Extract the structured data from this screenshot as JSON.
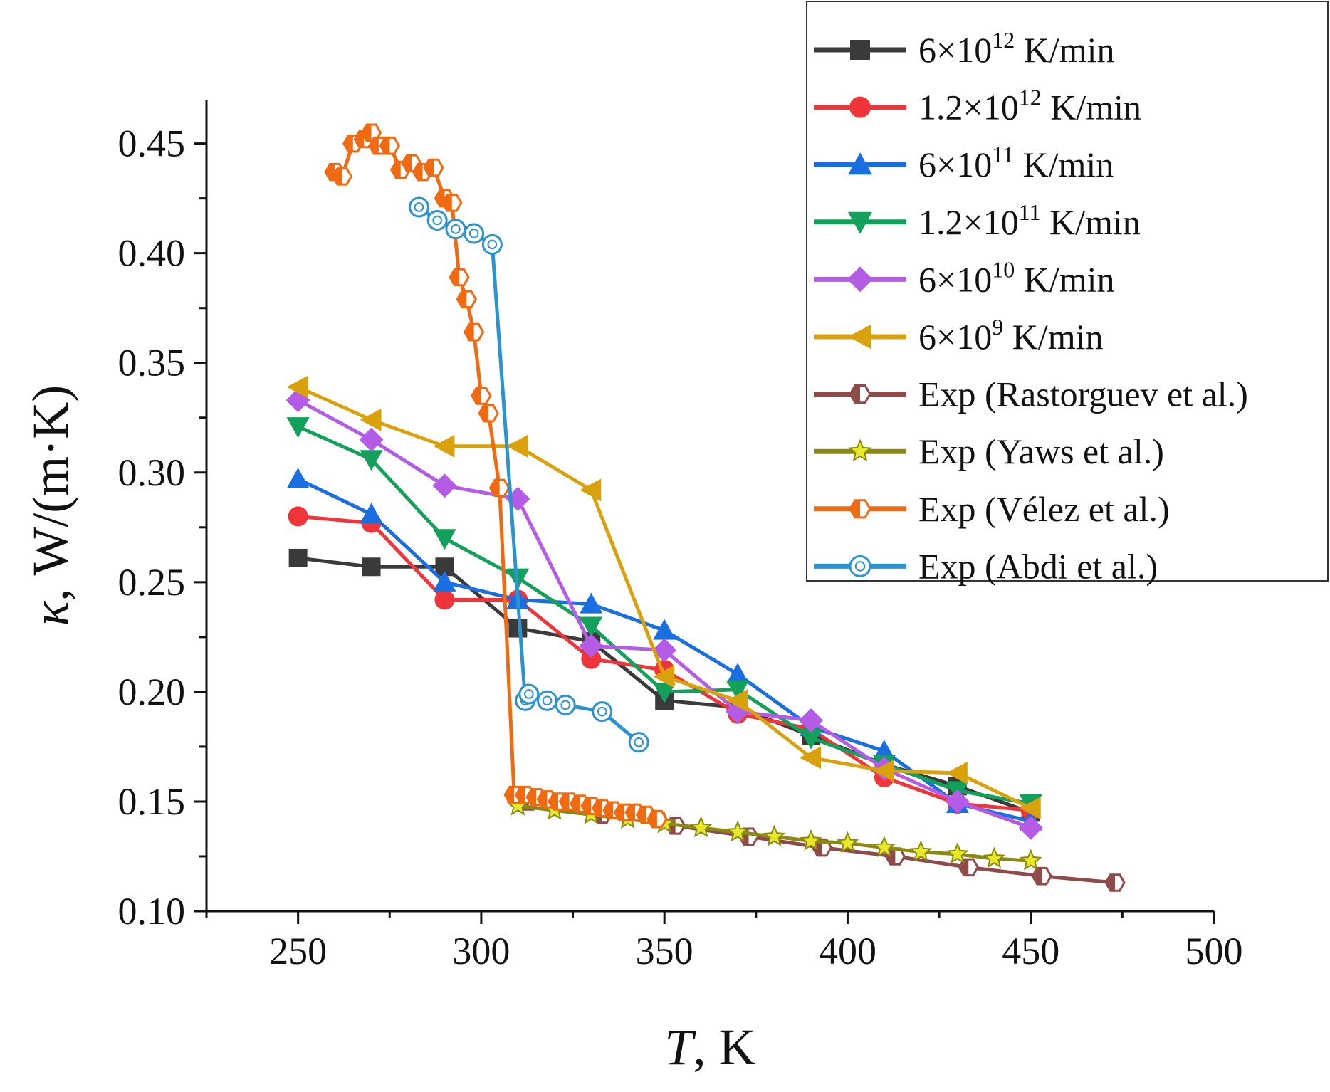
{
  "chart_data": {
    "type": "line",
    "xlabel": {
      "main": "T",
      "unit": ", K"
    },
    "ylabel": {
      "main": "κ",
      "unit": ", W/(m·K)"
    },
    "xlim": [
      225,
      500
    ],
    "ylim": [
      0.1,
      0.47
    ],
    "xticks": [
      250,
      300,
      350,
      400,
      450,
      500
    ],
    "yticks": [
      0.1,
      0.15,
      0.2,
      0.25,
      0.3,
      0.35,
      0.4,
      0.45
    ],
    "ytick_labels": [
      "0.10",
      "0.15",
      "0.20",
      "0.25",
      "0.30",
      "0.35",
      "0.40",
      "0.45"
    ],
    "grid": false,
    "legend_position": "top-right",
    "series": [
      {
        "name": "6×10^12 K/min",
        "label_base": "6×10",
        "label_exp": "12",
        "label_unit": " K/min",
        "color": "#3a3a3a",
        "marker": "square",
        "x": [
          250,
          270,
          290,
          310,
          330,
          350,
          370,
          390,
          410,
          430,
          450
        ],
        "y": [
          0.261,
          0.257,
          0.257,
          0.229,
          0.223,
          0.196,
          0.193,
          0.18,
          0.167,
          0.157,
          0.145
        ]
      },
      {
        "name": "1.2×10^12 K/min",
        "label_base": "1.2×10",
        "label_exp": "12",
        "label_unit": " K/min",
        "color": "#f0353a",
        "marker": "circle",
        "x": [
          250,
          270,
          290,
          310,
          330,
          350,
          370,
          390,
          410,
          430,
          450
        ],
        "y": [
          0.28,
          0.277,
          0.242,
          0.242,
          0.215,
          0.21,
          0.19,
          0.183,
          0.161,
          0.149,
          0.146
        ]
      },
      {
        "name": "6×10^11 K/min",
        "label_base": "6×10",
        "label_exp": "11",
        "label_unit": " K/min",
        "color": "#1a6fe0",
        "marker": "triangle-up",
        "x": [
          250,
          270,
          290,
          310,
          330,
          350,
          370,
          390,
          410,
          430,
          450
        ],
        "y": [
          0.297,
          0.281,
          0.25,
          0.242,
          0.24,
          0.228,
          0.208,
          0.184,
          0.173,
          0.149,
          0.141
        ]
      },
      {
        "name": "1.2×10^11 K/min",
        "label_base": "1.2×10",
        "label_exp": "11",
        "label_unit": " K/min",
        "color": "#12a05a",
        "marker": "triangle-down",
        "x": [
          250,
          270,
          290,
          310,
          330,
          350,
          370,
          390,
          410,
          430,
          450
        ],
        "y": [
          0.321,
          0.306,
          0.27,
          0.252,
          0.23,
          0.2,
          0.201,
          0.179,
          0.167,
          0.155,
          0.149
        ]
      },
      {
        "name": "6×10^10 K/min",
        "label_base": "6×10",
        "label_exp": "10",
        "label_unit": " K/min",
        "color": "#b45ce6",
        "marker": "diamond",
        "x": [
          250,
          270,
          290,
          310,
          330,
          350,
          370,
          390,
          410,
          430,
          450
        ],
        "y": [
          0.333,
          0.315,
          0.294,
          0.288,
          0.221,
          0.219,
          0.191,
          0.187,
          0.165,
          0.15,
          0.138
        ]
      },
      {
        "name": "6×10^9 K/min",
        "label_base": "6×10",
        "label_exp": "9",
        "label_unit": " K/min",
        "color": "#d9a20d",
        "marker": "triangle-left",
        "x": [
          250,
          270,
          290,
          310,
          330,
          350,
          370,
          390,
          410,
          430,
          450
        ],
        "y": [
          0.339,
          0.324,
          0.312,
          0.312,
          0.292,
          0.207,
          0.196,
          0.17,
          0.164,
          0.163,
          0.147
        ]
      },
      {
        "name": "Exp (Rastorguev et al.)",
        "label_base": "Exp (Rastorguev et al.)",
        "label_exp": "",
        "label_unit": "",
        "color": "#8f4a4a",
        "marker": "half-hexagon",
        "x": [
          313,
          333,
          353,
          373,
          393,
          413,
          433,
          453,
          473
        ],
        "y": [
          0.15,
          0.144,
          0.139,
          0.134,
          0.129,
          0.125,
          0.12,
          0.116,
          0.113
        ]
      },
      {
        "name": "Exp (Yaws et al.)",
        "label_base": "Exp (Yaws et al.)",
        "label_exp": "",
        "label_unit": "",
        "color": "#8a8a12",
        "marker": "star",
        "x": [
          310,
          320,
          330,
          340,
          350,
          360,
          370,
          380,
          390,
          400,
          410,
          420,
          430,
          440,
          450
        ],
        "y": [
          0.148,
          0.146,
          0.144,
          0.142,
          0.14,
          0.138,
          0.136,
          0.134,
          0.132,
          0.131,
          0.129,
          0.127,
          0.126,
          0.124,
          0.123
        ]
      },
      {
        "name": "Exp (Vélez et al.)",
        "label_base": "Exp (Vélez et al.)",
        "label_exp": "",
        "label_unit": "",
        "color": "#f06a12",
        "marker": "half-hexagon",
        "x": [
          260,
          262,
          265,
          268,
          270,
          272,
          275,
          278,
          281,
          284,
          287,
          290,
          292,
          294,
          296,
          298,
          300,
          302,
          305,
          309,
          312,
          315,
          318,
          321,
          324,
          327,
          330,
          333,
          336,
          339,
          342,
          345,
          348
        ],
        "y": [
          0.437,
          0.435,
          0.45,
          0.452,
          0.455,
          0.449,
          0.449,
          0.438,
          0.441,
          0.437,
          0.439,
          0.425,
          0.423,
          0.389,
          0.379,
          0.364,
          0.335,
          0.327,
          0.293,
          0.153,
          0.153,
          0.152,
          0.151,
          0.15,
          0.15,
          0.149,
          0.148,
          0.147,
          0.146,
          0.145,
          0.145,
          0.144,
          0.142
        ]
      },
      {
        "name": "Exp (Abdi et al.)",
        "label_base": "Exp (Abdi et al.)",
        "label_exp": "",
        "label_unit": "",
        "color": "#2b93cf",
        "marker": "circle-open",
        "x": [
          283,
          288,
          293,
          298,
          303,
          312,
          313,
          318,
          323,
          333,
          343
        ],
        "y": [
          0.421,
          0.415,
          0.411,
          0.409,
          0.404,
          0.196,
          0.199,
          0.196,
          0.194,
          0.191,
          0.177
        ]
      }
    ]
  }
}
